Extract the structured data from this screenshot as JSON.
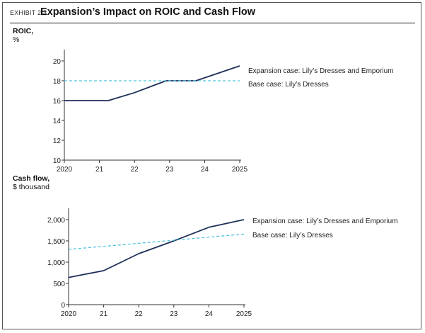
{
  "header": {
    "exhibit": "EXHIBIT 2.3",
    "title": "Expansion’s Impact on ROIC and Cash Flow"
  },
  "colors": {
    "expansion": "#1f2f5a",
    "base": "#4fc3e0",
    "axis": "#333333"
  },
  "chart_data": [
    {
      "type": "line",
      "ylabel_line1": "ROIC,",
      "ylabel_line2": "%",
      "x_ticks": [
        "2020",
        "21",
        "22",
        "23",
        "24",
        "2025"
      ],
      "xlim": [
        2020,
        2025
      ],
      "ylim": [
        10,
        20
      ],
      "y_ticks": [
        10,
        12,
        14,
        16,
        18,
        20
      ],
      "y_tick_labels": [
        "10",
        "12",
        "14",
        "16",
        "18",
        "20"
      ],
      "grid": false,
      "series": [
        {
          "name": "Expansion case: Lily’s Dresses and Emporium",
          "style": "solid",
          "x": [
            2020,
            2021.25,
            2022,
            2022.9,
            2023.75,
            2025
          ],
          "y": [
            16,
            16,
            16.8,
            18,
            18,
            19.5
          ]
        },
        {
          "name": "Base case: Lily’s Dresses",
          "style": "dashed",
          "x": [
            2020,
            2025
          ],
          "y": [
            18,
            18
          ]
        }
      ]
    },
    {
      "type": "line",
      "ylabel_line1": "Cash flow,",
      "ylabel_line2": "$ thousand",
      "x_ticks": [
        "2020",
        "21",
        "22",
        "23",
        "24",
        "2025"
      ],
      "xlim": [
        2020,
        2025
      ],
      "ylim": [
        0,
        2250
      ],
      "y_ticks": [
        0,
        500,
        1000,
        1500,
        2000
      ],
      "y_tick_labels": [
        "0",
        "500",
        "1,000",
        "1,500",
        "2,000"
      ],
      "grid": false,
      "series": [
        {
          "name": "Expansion case: Lily’s Dresses and Emporium",
          "style": "solid",
          "x": [
            2020,
            2021,
            2022,
            2023,
            2024,
            2025
          ],
          "y": [
            640,
            800,
            1200,
            1500,
            1820,
            2000
          ]
        },
        {
          "name": "Base case: Lily’s Dresses",
          "style": "dashed",
          "x": [
            2020,
            2025
          ],
          "y": [
            1300,
            1660
          ]
        }
      ]
    }
  ]
}
